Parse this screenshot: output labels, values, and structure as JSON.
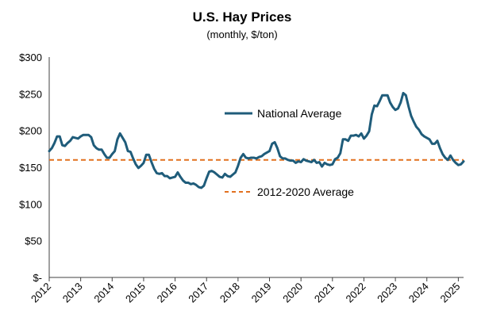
{
  "chart_data": {
    "type": "line",
    "title": "U.S. Hay Prices",
    "subtitle": "(monthly, $/ton)",
    "ylim": [
      0,
      300
    ],
    "y_ticks": [
      0,
      50,
      100,
      150,
      200,
      250,
      300
    ],
    "y_tick_labels": [
      "$-",
      "$50",
      "$100",
      "$150",
      "$200",
      "$250",
      "$300"
    ],
    "x_range": [
      "2012-01",
      "2025-03"
    ],
    "x_tick_labels": [
      "2012",
      "2013",
      "2014",
      "2015",
      "2016",
      "2017",
      "2018",
      "2019",
      "2020",
      "2021",
      "2022",
      "2023",
      "2024",
      "2025"
    ],
    "grid": false,
    "colors": {
      "national": "#1f5c7a",
      "average": "#e2701f"
    },
    "series": [
      {
        "name": "National Average",
        "style": "solid",
        "x": [
          "2012-01",
          "2012-02",
          "2012-03",
          "2012-04",
          "2012-05",
          "2012-06",
          "2012-07",
          "2012-08",
          "2012-09",
          "2012-10",
          "2012-11",
          "2012-12",
          "2013-01",
          "2013-02",
          "2013-03",
          "2013-04",
          "2013-05",
          "2013-06",
          "2013-07",
          "2013-08",
          "2013-09",
          "2013-10",
          "2013-11",
          "2013-12",
          "2014-01",
          "2014-02",
          "2014-03",
          "2014-04",
          "2014-05",
          "2014-06",
          "2014-07",
          "2014-08",
          "2014-09",
          "2014-10",
          "2014-11",
          "2014-12",
          "2015-01",
          "2015-02",
          "2015-03",
          "2015-04",
          "2015-05",
          "2015-06",
          "2015-07",
          "2015-08",
          "2015-09",
          "2015-10",
          "2015-11",
          "2015-12",
          "2016-01",
          "2016-02",
          "2016-03",
          "2016-04",
          "2016-05",
          "2016-06",
          "2016-07",
          "2016-08",
          "2016-09",
          "2016-10",
          "2016-11",
          "2016-12",
          "2017-01",
          "2017-02",
          "2017-03",
          "2017-04",
          "2017-05",
          "2017-06",
          "2017-07",
          "2017-08",
          "2017-09",
          "2017-10",
          "2017-11",
          "2017-12",
          "2018-01",
          "2018-02",
          "2018-03",
          "2018-04",
          "2018-05",
          "2018-06",
          "2018-07",
          "2018-08",
          "2018-09",
          "2018-10",
          "2018-11",
          "2018-12",
          "2019-01",
          "2019-02",
          "2019-03",
          "2019-04",
          "2019-05",
          "2019-06",
          "2019-07",
          "2019-08",
          "2019-09",
          "2019-10",
          "2019-11",
          "2019-12",
          "2020-01",
          "2020-02",
          "2020-03",
          "2020-04",
          "2020-05",
          "2020-06",
          "2020-07",
          "2020-08",
          "2020-09",
          "2020-10",
          "2020-11",
          "2020-12",
          "2021-01",
          "2021-02",
          "2021-03",
          "2021-04",
          "2021-05",
          "2021-06",
          "2021-07",
          "2021-08",
          "2021-09",
          "2021-10",
          "2021-11",
          "2021-12",
          "2022-01",
          "2022-02",
          "2022-03",
          "2022-04",
          "2022-05",
          "2022-06",
          "2022-07",
          "2022-08",
          "2022-09",
          "2022-10",
          "2022-11",
          "2022-12",
          "2023-01",
          "2023-02",
          "2023-03",
          "2023-04",
          "2023-05",
          "2023-06",
          "2023-07",
          "2023-08",
          "2023-09",
          "2023-10",
          "2023-11",
          "2023-12",
          "2024-01",
          "2024-02",
          "2024-03",
          "2024-04",
          "2024-05",
          "2024-06",
          "2024-07",
          "2024-08",
          "2024-09",
          "2024-10",
          "2024-11",
          "2024-12",
          "2025-01",
          "2025-02",
          "2025-03"
        ],
        "values": [
          172,
          176,
          183,
          192,
          192,
          180,
          179,
          183,
          186,
          191,
          190,
          189,
          192,
          194,
          194,
          194,
          191,
          180,
          176,
          174,
          174,
          168,
          163,
          163,
          168,
          172,
          188,
          196,
          190,
          184,
          172,
          171,
          162,
          154,
          149,
          152,
          156,
          167,
          167,
          157,
          148,
          142,
          141,
          142,
          138,
          138,
          135,
          136,
          137,
          143,
          137,
          132,
          129,
          129,
          127,
          128,
          126,
          123,
          122,
          125,
          135,
          144,
          145,
          143,
          140,
          137,
          136,
          141,
          138,
          137,
          140,
          143,
          152,
          163,
          168,
          163,
          162,
          163,
          163,
          162,
          164,
          165,
          168,
          170,
          172,
          182,
          184,
          176,
          165,
          162,
          162,
          160,
          159,
          159,
          156,
          158,
          157,
          161,
          159,
          158,
          157,
          160,
          156,
          157,
          151,
          156,
          154,
          153,
          154,
          161,
          163,
          169,
          188,
          188,
          186,
          193,
          193,
          194,
          192,
          196,
          189,
          193,
          199,
          222,
          234,
          233,
          240,
          248,
          248,
          248,
          238,
          232,
          228,
          230,
          238,
          251,
          248,
          233,
          220,
          212,
          205,
          201,
          195,
          192,
          190,
          188,
          182,
          182,
          186,
          176,
          168,
          163,
          160,
          166,
          160,
          156,
          153,
          154,
          158
        ]
      },
      {
        "name": "2012-2020 Average",
        "style": "dashed",
        "x": [
          "2012-01",
          "2025-03"
        ],
        "values": [
          160,
          160
        ]
      }
    ],
    "legend": [
      "National Average",
      "2012-2020 Average"
    ]
  }
}
